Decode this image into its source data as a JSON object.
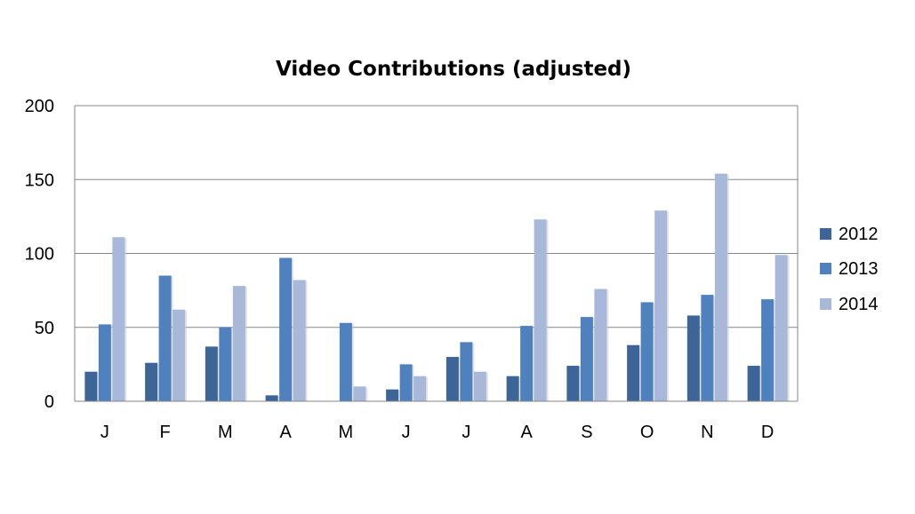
{
  "chart_data": {
    "type": "bar",
    "title": "Video Contributions (adjusted)",
    "xlabel": "",
    "ylabel": "",
    "categories": [
      "J",
      "F",
      "M",
      "A",
      "M",
      "J",
      "J",
      "A",
      "S",
      "O",
      "N",
      "D"
    ],
    "series": [
      {
        "name": "2012",
        "color": "#3e6598",
        "values": [
          20,
          26,
          37,
          4,
          0,
          8,
          30,
          17,
          24,
          38,
          58,
          24
        ]
      },
      {
        "name": "2013",
        "color": "#4e81bd",
        "values": [
          52,
          85,
          50,
          97,
          53,
          25,
          40,
          51,
          57,
          67,
          72,
          69
        ]
      },
      {
        "name": "2014",
        "color": "#a8b8d9",
        "values": [
          111,
          62,
          78,
          82,
          10,
          17,
          20,
          123,
          76,
          129,
          154,
          99
        ]
      }
    ],
    "ylim": [
      0,
      200
    ],
    "yticks": [
      0,
      50,
      100,
      150,
      200
    ],
    "grid": true,
    "legend_position": "right"
  }
}
